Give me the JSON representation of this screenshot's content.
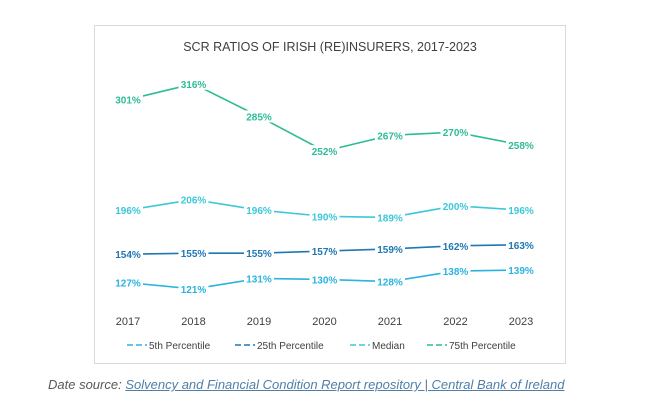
{
  "source": {
    "prefix": "Date source: ",
    "link_text": "Solvency and Financial Condition Report repository | Central Bank of Ireland"
  },
  "chart_data": {
    "type": "line",
    "title": "SCR RATIOS OF IRISH (RE)INSURERS, 2017-2023",
    "xlabel": "",
    "ylabel": "",
    "x": [
      "2017",
      "2018",
      "2019",
      "2020",
      "2021",
      "2022",
      "2023"
    ],
    "grid": false,
    "legend_position": "bottom",
    "series": [
      {
        "name": "5th Percentile",
        "color": "#2bb3e0",
        "values": [
          127,
          121,
          131,
          130,
          128,
          138,
          139
        ],
        "labels": [
          "127%",
          "121%",
          "131%",
          "130%",
          "128%",
          "138%",
          "139%"
        ]
      },
      {
        "name": "25th Percentile",
        "color": "#1f77b4",
        "values": [
          154,
          155,
          155,
          157,
          159,
          162,
          163
        ],
        "labels": [
          "154%",
          "155%",
          "155%",
          "157%",
          "159%",
          "162%",
          "163%"
        ]
      },
      {
        "name": "Median",
        "color": "#3cc8d8",
        "values": [
          196,
          206,
          196,
          190,
          189,
          200,
          196
        ],
        "labels": [
          "196%",
          "206%",
          "196%",
          "190%",
          "189%",
          "200%",
          "196%"
        ]
      },
      {
        "name": "75th Percentile",
        "color": "#2ebc96",
        "values": [
          301,
          316,
          285,
          252,
          267,
          270,
          258
        ],
        "labels": [
          "301%",
          "316%",
          "285%",
          "252%",
          "267%",
          "270%",
          "258%"
        ]
      }
    ]
  }
}
